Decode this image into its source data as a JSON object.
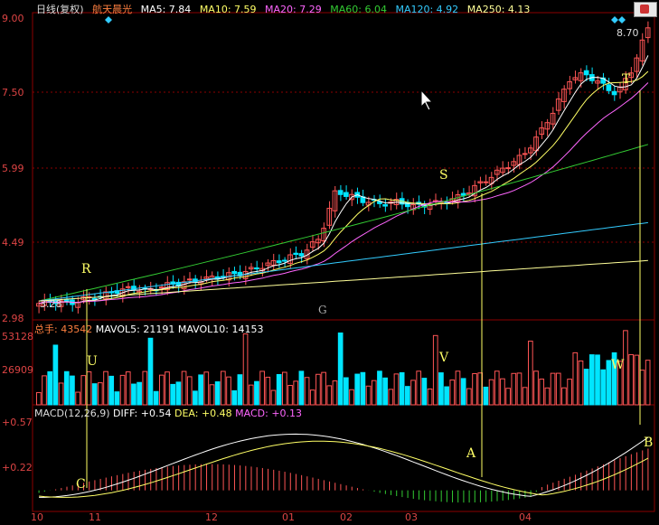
{
  "header": {
    "period": "日线(复权)",
    "stock": "航天晨光",
    "ma": [
      {
        "label": "MA5: 7.84",
        "color": "#ffffff"
      },
      {
        "label": "MA10: 7.59",
        "color": "#ffff66"
      },
      {
        "label": "MA20: 7.29",
        "color": "#ff66ff"
      },
      {
        "label": "MA60: 6.04",
        "color": "#33cc33"
      },
      {
        "label": "MA120: 4.92",
        "color": "#33ccff"
      },
      {
        "label": "MA250: 4.13",
        "color": "#ffff99"
      }
    ]
  },
  "price_axis": [
    "9.00",
    "7.50",
    "5.99",
    "4.49",
    "2.98"
  ],
  "price_marks": {
    "high": "8.70",
    "low": "3.28"
  },
  "volume_header": {
    "total": "总手: 43542",
    "mavol5": "MAVOL5: 21191",
    "mavol10": "MAVOL10: 14153"
  },
  "volume_axis": [
    "53128",
    "26909"
  ],
  "macd_header": {
    "title": "MACD(12,26,9)",
    "diff": "DIFF: +0.54",
    "dea": "DEA: +0.48",
    "macd": "MACD: +0.13"
  },
  "macd_axis": [
    "+0.57",
    "+0.22"
  ],
  "x_axis": [
    "10",
    "11",
    "12",
    "01",
    "02",
    "03",
    "04"
  ],
  "annotations": [
    "R",
    "U",
    "C",
    "G",
    "S",
    "V",
    "A",
    "T",
    "W",
    "B"
  ],
  "colors": {
    "up": "#ff5555",
    "down": "#00e5ff",
    "bg": "#000000",
    "grid": "#8b0000"
  },
  "chart_data": {
    "type": "candlestick",
    "close_approx": [
      3.3,
      3.35,
      3.3,
      3.4,
      3.45,
      3.55,
      3.6,
      3.55,
      3.65,
      3.7,
      3.75,
      3.8,
      3.85,
      3.9,
      4.0,
      4.1,
      4.2,
      4.3,
      4.6,
      5.5,
      5.4,
      5.3,
      5.25,
      5.3,
      5.2,
      5.25,
      5.3,
      5.4,
      5.6,
      5.8,
      6.0,
      6.2,
      6.6,
      7.1,
      7.7,
      7.8,
      7.6,
      7.4,
      7.9,
      8.7
    ],
    "price_range": [
      2.98,
      9.0
    ],
    "volume_range": [
      0,
      53128
    ],
    "macd_range": [
      -0.15,
      0.57
    ]
  }
}
